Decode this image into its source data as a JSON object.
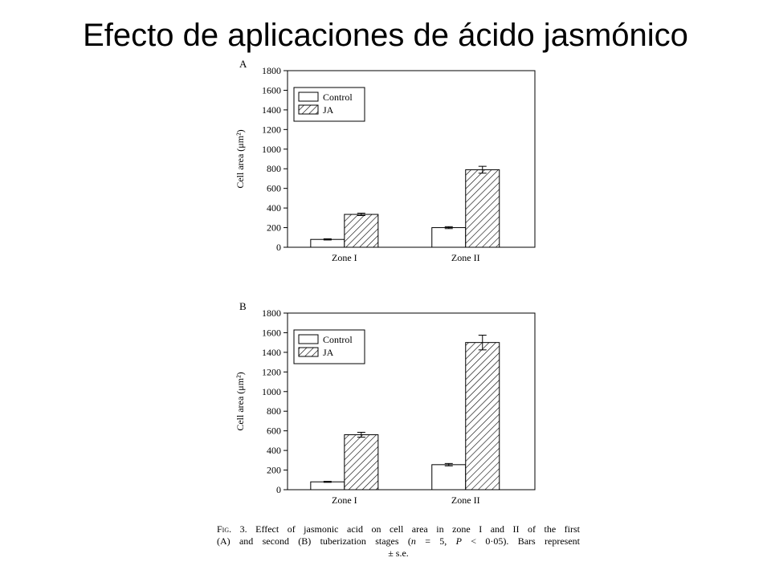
{
  "slide": {
    "title": "Efecto de aplicaciones de ácido jasmónico"
  },
  "figure": {
    "caption_label": "Fig. 3.",
    "caption_line1": "Effect of jasmonic acid on cell area in zone I and II of the first",
    "caption_line2_a": "(A) and second (B) tuberization stages (",
    "caption_line2_n": "n",
    "caption_line2_b": " = 5, ",
    "caption_line2_p": "P",
    "caption_line2_c": " < 0·05). Bars represent",
    "caption_line3": "± s.e."
  },
  "colors": {
    "bar_fill_control": "#ffffff",
    "bar_fill_ja": "#ffffff",
    "hatch_stroke": "#000000",
    "axis": "#000000"
  },
  "chart_data": [
    {
      "type": "bar",
      "panel_label": "A",
      "categories": [
        "Zone I",
        "Zone II"
      ],
      "series": [
        {
          "name": "Control",
          "values": [
            80,
            200
          ],
          "errors": [
            6,
            10
          ],
          "pattern": "solid"
        },
        {
          "name": "JA",
          "values": [
            335,
            790
          ],
          "errors": [
            12,
            35
          ],
          "pattern": "hatched"
        }
      ],
      "ylabel": "Cell area (μm²)",
      "ylim": [
        0,
        1800
      ],
      "yticks": [
        0,
        200,
        400,
        600,
        800,
        1000,
        1200,
        1400,
        1600,
        1800
      ],
      "grid": false,
      "legend": "top-left"
    },
    {
      "type": "bar",
      "panel_label": "B",
      "categories": [
        "Zone I",
        "Zone II"
      ],
      "series": [
        {
          "name": "Control",
          "values": [
            80,
            255
          ],
          "errors": [
            5,
            12
          ],
          "pattern": "solid"
        },
        {
          "name": "JA",
          "values": [
            560,
            1500
          ],
          "errors": [
            25,
            75
          ],
          "pattern": "hatched"
        }
      ],
      "ylabel": "Cell area (μm²)",
      "ylim": [
        0,
        1800
      ],
      "yticks": [
        0,
        200,
        400,
        600,
        800,
        1000,
        1200,
        1400,
        1600,
        1800
      ],
      "grid": false,
      "legend": "top-left"
    }
  ]
}
